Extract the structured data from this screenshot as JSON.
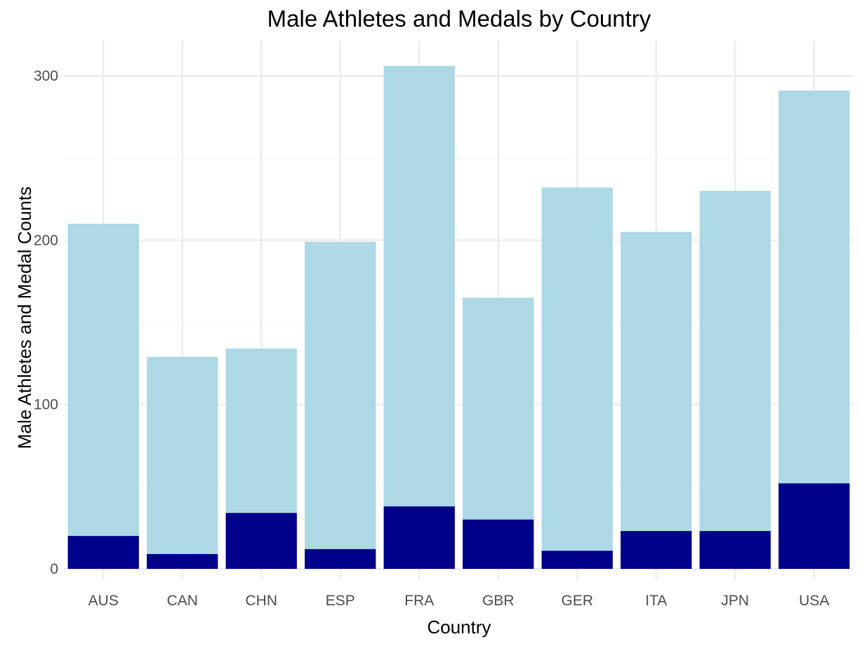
{
  "chart_data": {
    "type": "bar",
    "title": "Male Athletes and Medals by Country",
    "xlabel": "Country",
    "ylabel": "Male Athletes and Medal Counts",
    "categories": [
      "AUS",
      "CAN",
      "CHN",
      "ESP",
      "FRA",
      "GBR",
      "GER",
      "ITA",
      "JPN",
      "USA"
    ],
    "series": [
      {
        "values": [
          210,
          129,
          134,
          199,
          306,
          165,
          232,
          205,
          230,
          291
        ],
        "color": "#add8e6"
      },
      {
        "values": [
          20,
          9,
          34,
          12,
          38,
          30,
          11,
          23,
          23,
          52
        ],
        "color": "#00008b"
      }
    ],
    "ylim": [
      0,
      320
    ],
    "yticks": [
      0,
      100,
      200,
      300
    ],
    "grid": true,
    "legend": "none"
  }
}
